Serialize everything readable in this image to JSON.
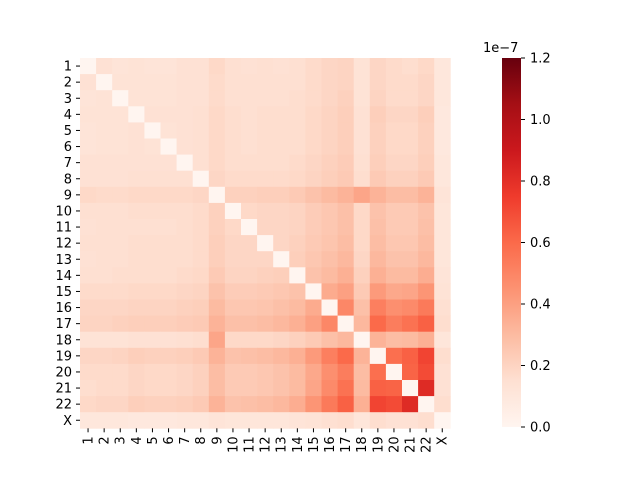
{
  "chart_data": {
    "type": "heatmap",
    "title": "",
    "xlabel": "",
    "ylabel": "",
    "rows": [
      "1",
      "2",
      "3",
      "4",
      "5",
      "6",
      "7",
      "8",
      "9",
      "10",
      "11",
      "12",
      "13",
      "14",
      "15",
      "16",
      "17",
      "18",
      "19",
      "20",
      "21",
      "22",
      "X"
    ],
    "cols": [
      "1",
      "2",
      "3",
      "4",
      "5",
      "6",
      "7",
      "8",
      "9",
      "10",
      "11",
      "12",
      "13",
      "14",
      "15",
      "16",
      "17",
      "18",
      "19",
      "20",
      "21",
      "22",
      "X"
    ],
    "colormap": "Reds",
    "vmin": 0.0,
    "vmax": 1.2e-07,
    "colorbar": {
      "ticks": [
        0.0,
        0.2,
        0.4,
        0.6,
        0.8,
        1.0,
        1.2
      ],
      "tick_labels": [
        "0.0",
        "0.2",
        "0.4",
        "0.6",
        "0.8",
        "1.0",
        "1.2"
      ],
      "offset_text": "1e−7"
    },
    "values": [
      [
        0.0,
        0.14,
        0.12,
        0.13,
        0.12,
        0.12,
        0.14,
        0.14,
        0.18,
        0.15,
        0.14,
        0.15,
        0.14,
        0.15,
        0.17,
        0.19,
        0.2,
        0.13,
        0.19,
        0.17,
        0.16,
        0.18,
        0.1
      ],
      [
        0.14,
        0.0,
        0.13,
        0.13,
        0.13,
        0.13,
        0.14,
        0.14,
        0.17,
        0.15,
        0.15,
        0.15,
        0.15,
        0.15,
        0.17,
        0.19,
        0.2,
        0.13,
        0.19,
        0.17,
        0.17,
        0.19,
        0.1
      ],
      [
        0.12,
        0.13,
        0.0,
        0.13,
        0.13,
        0.13,
        0.14,
        0.14,
        0.17,
        0.15,
        0.15,
        0.15,
        0.15,
        0.16,
        0.17,
        0.19,
        0.21,
        0.13,
        0.2,
        0.17,
        0.17,
        0.19,
        0.1
      ],
      [
        0.13,
        0.13,
        0.13,
        0.0,
        0.14,
        0.14,
        0.14,
        0.15,
        0.18,
        0.16,
        0.15,
        0.16,
        0.16,
        0.16,
        0.18,
        0.2,
        0.22,
        0.14,
        0.22,
        0.19,
        0.19,
        0.22,
        0.09
      ],
      [
        0.12,
        0.13,
        0.13,
        0.14,
        0.0,
        0.13,
        0.14,
        0.15,
        0.18,
        0.16,
        0.15,
        0.16,
        0.16,
        0.16,
        0.18,
        0.2,
        0.22,
        0.14,
        0.21,
        0.18,
        0.18,
        0.21,
        0.09
      ],
      [
        0.12,
        0.13,
        0.13,
        0.14,
        0.13,
        0.0,
        0.14,
        0.15,
        0.18,
        0.16,
        0.15,
        0.16,
        0.16,
        0.16,
        0.18,
        0.2,
        0.22,
        0.14,
        0.21,
        0.18,
        0.18,
        0.21,
        0.09
      ],
      [
        0.14,
        0.14,
        0.14,
        0.14,
        0.14,
        0.14,
        0.0,
        0.15,
        0.18,
        0.16,
        0.16,
        0.16,
        0.16,
        0.17,
        0.19,
        0.21,
        0.23,
        0.15,
        0.22,
        0.19,
        0.19,
        0.22,
        0.1
      ],
      [
        0.14,
        0.14,
        0.14,
        0.15,
        0.15,
        0.15,
        0.15,
        0.0,
        0.19,
        0.17,
        0.17,
        0.17,
        0.17,
        0.18,
        0.2,
        0.22,
        0.24,
        0.16,
        0.24,
        0.21,
        0.21,
        0.24,
        0.1
      ],
      [
        0.18,
        0.17,
        0.17,
        0.18,
        0.18,
        0.18,
        0.18,
        0.19,
        0.0,
        0.21,
        0.21,
        0.22,
        0.22,
        0.24,
        0.27,
        0.3,
        0.33,
        0.38,
        0.33,
        0.29,
        0.29,
        0.33,
        0.12
      ],
      [
        0.15,
        0.15,
        0.15,
        0.16,
        0.16,
        0.16,
        0.16,
        0.17,
        0.21,
        0.0,
        0.18,
        0.19,
        0.19,
        0.2,
        0.23,
        0.25,
        0.28,
        0.18,
        0.27,
        0.24,
        0.24,
        0.27,
        0.11
      ],
      [
        0.14,
        0.15,
        0.15,
        0.15,
        0.15,
        0.15,
        0.16,
        0.17,
        0.21,
        0.18,
        0.0,
        0.19,
        0.19,
        0.2,
        0.23,
        0.25,
        0.28,
        0.18,
        0.28,
        0.24,
        0.24,
        0.28,
        0.11
      ],
      [
        0.15,
        0.15,
        0.15,
        0.16,
        0.16,
        0.16,
        0.16,
        0.17,
        0.22,
        0.19,
        0.19,
        0.0,
        0.19,
        0.21,
        0.24,
        0.26,
        0.29,
        0.18,
        0.29,
        0.25,
        0.25,
        0.29,
        0.11
      ],
      [
        0.14,
        0.15,
        0.15,
        0.16,
        0.16,
        0.16,
        0.16,
        0.17,
        0.22,
        0.19,
        0.19,
        0.19,
        0.0,
        0.22,
        0.25,
        0.28,
        0.31,
        0.19,
        0.31,
        0.27,
        0.27,
        0.31,
        0.11
      ],
      [
        0.15,
        0.15,
        0.16,
        0.16,
        0.16,
        0.16,
        0.17,
        0.18,
        0.24,
        0.2,
        0.2,
        0.21,
        0.22,
        0.0,
        0.27,
        0.3,
        0.34,
        0.21,
        0.34,
        0.3,
        0.3,
        0.35,
        0.12
      ],
      [
        0.17,
        0.17,
        0.17,
        0.18,
        0.18,
        0.18,
        0.19,
        0.2,
        0.27,
        0.23,
        0.23,
        0.24,
        0.25,
        0.27,
        0.0,
        0.36,
        0.4,
        0.24,
        0.42,
        0.37,
        0.38,
        0.44,
        0.13
      ],
      [
        0.19,
        0.19,
        0.19,
        0.2,
        0.2,
        0.2,
        0.21,
        0.22,
        0.3,
        0.25,
        0.25,
        0.26,
        0.28,
        0.3,
        0.36,
        0.0,
        0.49,
        0.28,
        0.52,
        0.46,
        0.48,
        0.54,
        0.15
      ],
      [
        0.2,
        0.2,
        0.21,
        0.22,
        0.22,
        0.22,
        0.23,
        0.24,
        0.33,
        0.28,
        0.28,
        0.29,
        0.31,
        0.34,
        0.4,
        0.49,
        0.0,
        0.31,
        0.6,
        0.53,
        0.57,
        0.63,
        0.16
      ],
      [
        0.13,
        0.13,
        0.13,
        0.14,
        0.14,
        0.14,
        0.15,
        0.16,
        0.38,
        0.18,
        0.18,
        0.18,
        0.19,
        0.21,
        0.24,
        0.28,
        0.31,
        0.0,
        0.33,
        0.29,
        0.3,
        0.34,
        0.11
      ],
      [
        0.19,
        0.19,
        0.2,
        0.22,
        0.21,
        0.21,
        0.22,
        0.24,
        0.33,
        0.27,
        0.28,
        0.29,
        0.31,
        0.34,
        0.42,
        0.52,
        0.6,
        0.33,
        0.0,
        0.58,
        0.63,
        0.72,
        0.16
      ],
      [
        0.17,
        0.17,
        0.17,
        0.19,
        0.18,
        0.18,
        0.19,
        0.21,
        0.29,
        0.24,
        0.24,
        0.25,
        0.27,
        0.3,
        0.37,
        0.46,
        0.53,
        0.29,
        0.58,
        0.0,
        0.62,
        0.7,
        0.14
      ],
      [
        0.16,
        0.17,
        0.17,
        0.19,
        0.18,
        0.18,
        0.19,
        0.21,
        0.29,
        0.24,
        0.24,
        0.25,
        0.27,
        0.3,
        0.38,
        0.48,
        0.57,
        0.3,
        0.63,
        0.62,
        0.0,
        0.82,
        0.14
      ],
      [
        0.18,
        0.19,
        0.19,
        0.22,
        0.21,
        0.21,
        0.22,
        0.24,
        0.33,
        0.27,
        0.28,
        0.29,
        0.31,
        0.35,
        0.44,
        0.54,
        0.63,
        0.34,
        0.72,
        0.7,
        0.82,
        0.0,
        0.16
      ],
      [
        0.1,
        0.1,
        0.1,
        0.09,
        0.09,
        0.09,
        0.1,
        0.1,
        0.12,
        0.11,
        0.11,
        0.11,
        0.11,
        0.12,
        0.13,
        0.15,
        0.16,
        0.11,
        0.16,
        0.14,
        0.14,
        0.16,
        0.0
      ]
    ]
  }
}
